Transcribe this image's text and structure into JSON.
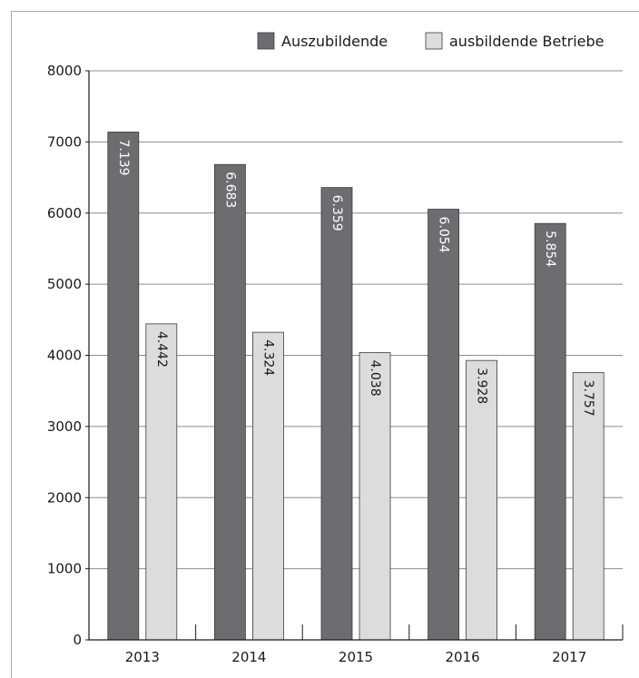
{
  "chart_data": {
    "type": "bar",
    "categories": [
      "2013",
      "2014",
      "2015",
      "2016",
      "2017"
    ],
    "series": [
      {
        "name": "Auszubildende",
        "values": [
          7139,
          6683,
          6359,
          6054,
          5854
        ],
        "labels": [
          "7.139",
          "6.683",
          "6.359",
          "6.054",
          "5.854"
        ],
        "color": "#6d6d6f",
        "label_color": "#ffffff"
      },
      {
        "name": "ausbildende Betriebe",
        "values": [
          4442,
          4324,
          4038,
          3928,
          3757
        ],
        "labels": [
          "4.442",
          "4.324",
          "4.038",
          "3.928",
          "3.757"
        ],
        "color": "#dcdcdd",
        "label_color": "#1a1a1a"
      }
    ],
    "ylim": [
      0,
      8000
    ],
    "yticks": [
      0,
      1000,
      2000,
      3000,
      4000,
      5000,
      6000,
      7000,
      8000
    ],
    "ytick_labels": [
      "0",
      "1000",
      "2000",
      "3000",
      "4000",
      "5000",
      "6000",
      "7000",
      "8000"
    ],
    "grid": true,
    "legend_position": "top-right",
    "title": "",
    "xlabel": "",
    "ylabel": ""
  }
}
